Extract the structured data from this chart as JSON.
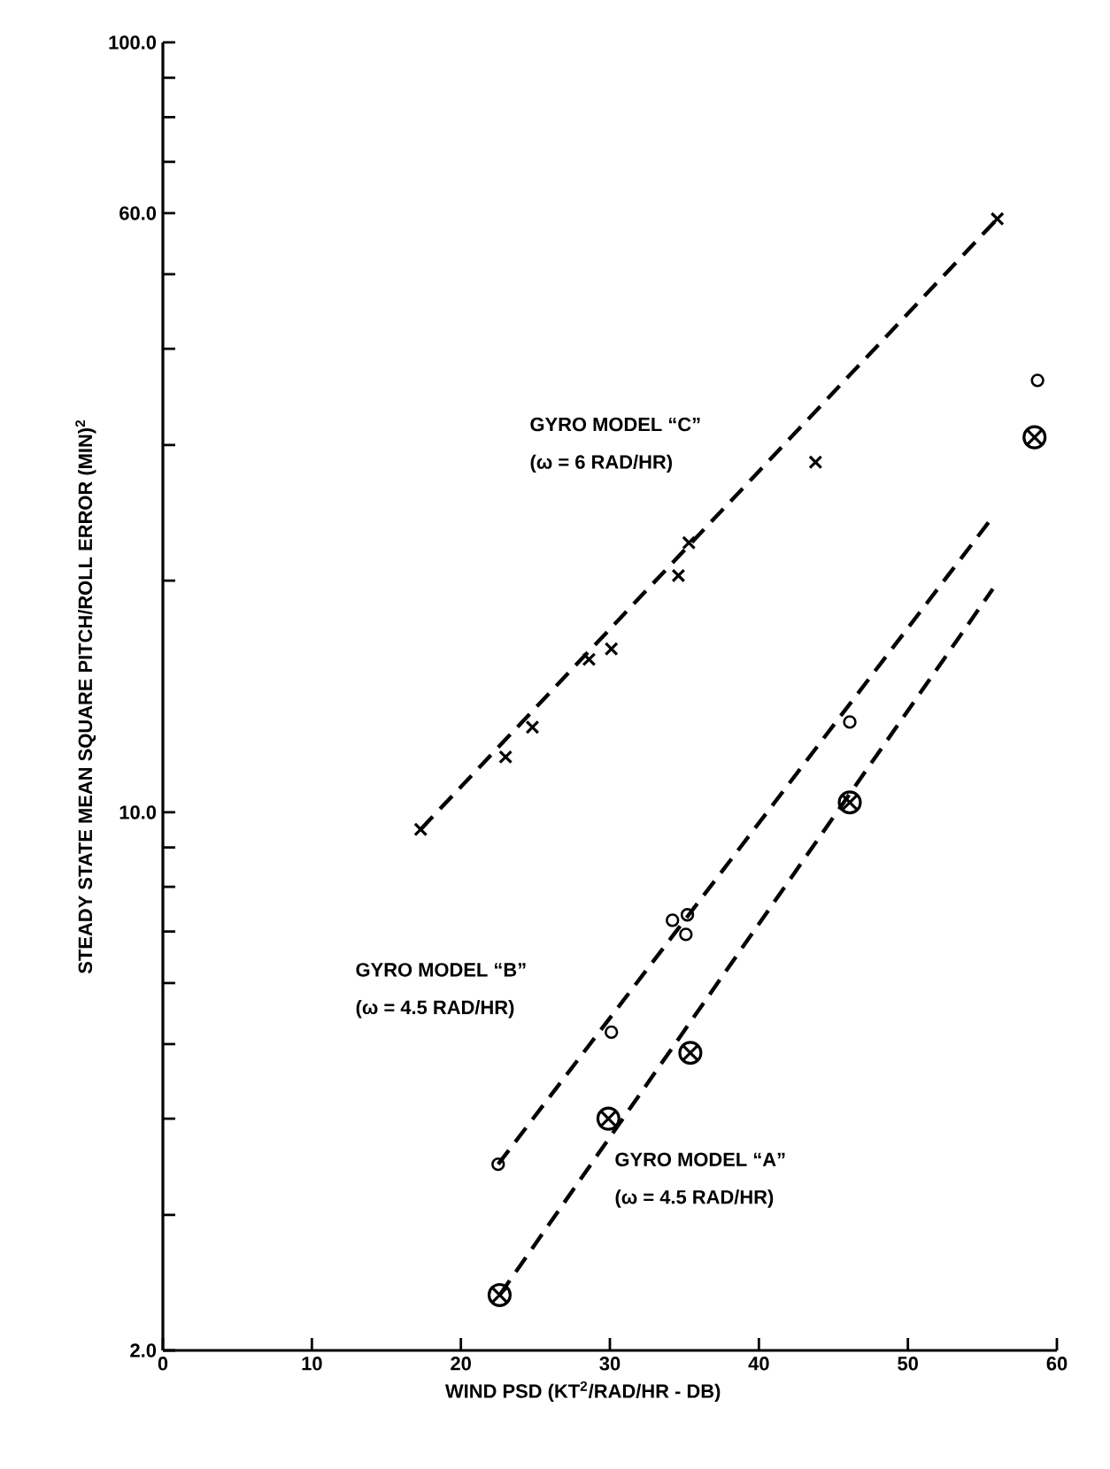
{
  "chart_data": {
    "type": "scatter",
    "xlabel": "WIND PSD (KT$^{2}$/RAD/HR - DB)",
    "ylabel": "STEADY STATE MEAN SQUARE PITCH/ROLL ERROR (MIN)$^{2}$",
    "log": "y",
    "grid": false,
    "xlim": [
      0,
      60
    ],
    "xticks": [
      0,
      10,
      20,
      30,
      40,
      50,
      60
    ],
    "ylim": [
      2,
      100
    ],
    "yticks": [
      {
        "value": 2,
        "label": "2.0"
      },
      {
        "value": 3,
        "label": null
      },
      {
        "value": 4,
        "label": null
      },
      {
        "value": 5,
        "label": null
      },
      {
        "value": 6,
        "label": null
      },
      {
        "value": 7,
        "label": null
      },
      {
        "value": 8,
        "label": null
      },
      {
        "value": 9,
        "label": null
      },
      {
        "value": 10,
        "label": "10.0"
      },
      {
        "value": 20,
        "label": null
      },
      {
        "value": 30,
        "label": null
      },
      {
        "value": 40,
        "label": null
      },
      {
        "value": 50,
        "label": null
      },
      {
        "value": 60,
        "label": "60.0"
      },
      {
        "value": 70,
        "label": null
      },
      {
        "value": 80,
        "label": null
      },
      {
        "value": 90,
        "label": null
      },
      {
        "value": 100,
        "label": "100.0"
      }
    ],
    "series": [
      {
        "marker": "cross",
        "color": "#000000",
        "x": [
          17.3,
          23.0,
          24.8,
          28.6,
          30.1,
          34.6,
          35.3,
          43.8,
          56.0
        ],
        "values": [
          9.5,
          11.8,
          12.9,
          15.8,
          16.3,
          20.3,
          22.4,
          28.5,
          59
        ]
      },
      {
        "type": "line",
        "line_style": "dashed",
        "marker": "none",
        "color": "#000000",
        "x": [
          17.3,
          56.0
        ],
        "values": [
          9.5,
          59
        ]
      },
      {
        "marker": "circle",
        "color": "#000000",
        "x": [
          22.5,
          30.1,
          34.2,
          35.2,
          35.1,
          46.1,
          58.7
        ],
        "values": [
          3.49,
          5.18,
          7.24,
          7.36,
          6.94,
          13.1,
          36.4
        ]
      },
      {
        "type": "line",
        "line_style": "dashed",
        "marker": "none",
        "color": "#000000",
        "x": [
          22.5,
          55.7
        ],
        "values": [
          3.49,
          24.2
        ]
      },
      {
        "color": "#000000",
        "x": [
          22.6,
          29.9,
          35.4,
          46.1,
          58.5
        ],
        "values": [
          2.36,
          4.0,
          4.87,
          10.3,
          30.7
        ]
      },
      {
        "type": "line",
        "line_style": "dashed",
        "marker": "none",
        "color": "#000000",
        "x": [
          22.6,
          55.7
        ],
        "values": [
          2.36,
          19.5
        ]
      }
    ],
    "annotations": [
      "GYRO MODEL “C”",
      "(ω = 6 RAD/HR)",
      "GYRO MODEL “B”",
      "(ω = 4.5 RAD/HR)",
      "GYRO MODEL “A”",
      "(ω = 4.5 RAD/HR)"
    ]
  }
}
